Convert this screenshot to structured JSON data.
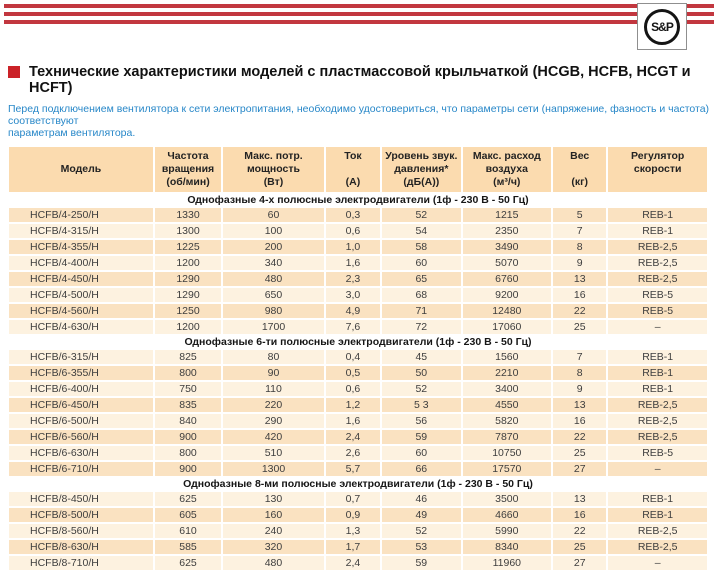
{
  "logo": {
    "text": "S&P"
  },
  "header": {
    "title": "Технические характеристики моделей с пластмассовой крыльчаткой (HCGB, HCFB, HCGT и HCFT)",
    "note_line1": "Перед подключением вентилятора к сети электропитания, необходимо удостовериться, что параметры сети (напряжение, фазность и частота) соответствуют",
    "note_line2": "параметрам вентилятора."
  },
  "colors": {
    "stripe": "#C2373F",
    "accent_red": "#CB2228",
    "note_blue": "#2787C8",
    "header_bg": "#FBDBAF",
    "row_dark": "#FAE2C1",
    "row_light": "#FDF2E0"
  },
  "table": {
    "columns": [
      {
        "lines": [
          "Модель"
        ]
      },
      {
        "lines": [
          "Частота",
          "вращения",
          "(об/мин)"
        ]
      },
      {
        "lines": [
          "Макс. потр.",
          "мощность",
          "(Вт)"
        ]
      },
      {
        "lines": [
          "Ток",
          "",
          "(А)"
        ]
      },
      {
        "lines": [
          "Уровень звук.",
          "давления*",
          "(дБ(А))"
        ]
      },
      {
        "lines": [
          "Макс. расход",
          "воздуха",
          "(м³/ч)"
        ]
      },
      {
        "lines": [
          "Вес",
          "",
          "(кг)"
        ]
      },
      {
        "lines": [
          "Регулятор",
          "скорости"
        ]
      }
    ],
    "sections": [
      {
        "title": "Однофазные 4-х полюсные электродвигатели (1ф - 230 В - 50 Гц)",
        "zebra_start": "dark",
        "rows": [
          [
            "HCFB/4-250/H",
            "1330",
            "60",
            "0,3",
            "52",
            "1215",
            "5",
            "REB-1"
          ],
          [
            "HCFB/4-315/H",
            "1300",
            "100",
            "0,6",
            "54",
            "2350",
            "7",
            "REB-1"
          ],
          [
            "HCFB/4-355/H",
            "1225",
            "200",
            "1,0",
            "58",
            "3490",
            "8",
            "REB-2,5"
          ],
          [
            "HCFB/4-400/H",
            "1200",
            "340",
            "1,6",
            "60",
            "5070",
            "9",
            "REB-2,5"
          ],
          [
            "HCFB/4-450/H",
            "1290",
            "480",
            "2,3",
            "65",
            "6760",
            "13",
            "REB-2,5"
          ],
          [
            "HCFB/4-500/H",
            "1290",
            "650",
            "3,0",
            "68",
            "9200",
            "16",
            "REB-5"
          ],
          [
            "HCFB/4-560/H",
            "1250",
            "980",
            "4,9",
            "71",
            "12480",
            "22",
            "REB-5"
          ],
          [
            "HCFB/4-630/H",
            "1200",
            "1700",
            "7,6",
            "72",
            "17060",
            "25",
            "–"
          ]
        ]
      },
      {
        "title": "Однофазные 6-ти полюсные электродвигатели (1ф - 230 В - 50 Гц)",
        "zebra_start": "light",
        "rows": [
          [
            "HCFB/6-315/H",
            "825",
            "80",
            "0,4",
            "45",
            "1560",
            "7",
            "REB-1"
          ],
          [
            "HCFB/6-355/H",
            "800",
            "90",
            "0,5",
            "50",
            "2210",
            "8",
            "REB-1"
          ],
          [
            "HCFB/6-400/H",
            "750",
            "110",
            "0,6",
            "52",
            "3400",
            "9",
            "REB-1"
          ],
          [
            "HCFB/6-450/H",
            "835",
            "220",
            "1,2",
            "5 3",
            "4550",
            "13",
            "REB-2,5"
          ],
          [
            "HCFB/6-500/H",
            "840",
            "290",
            "1,6",
            "56",
            "5820",
            "16",
            "REB-2,5"
          ],
          [
            "HCFB/6-560/H",
            "900",
            "420",
            "2,4",
            "59",
            "7870",
            "22",
            "REB-2,5"
          ],
          [
            "HCFB/6-630/H",
            "800",
            "510",
            "2,6",
            "60",
            "10750",
            "25",
            "REB-5"
          ],
          [
            "HCFB/6-710/H",
            "900",
            "1300",
            "5,7",
            "66",
            "17570",
            "27",
            "–"
          ]
        ]
      },
      {
        "title": "Однофазные 8-ми полюсные электродвигатели (1ф - 230 В - 50 Гц)",
        "zebra_start": "light",
        "rows": [
          [
            "HCFB/8-450/H",
            "625",
            "130",
            "0,7",
            "46",
            "3500",
            "13",
            "REB-1"
          ],
          [
            "HCFB/8-500/H",
            "605",
            "160",
            "0,9",
            "49",
            "4660",
            "16",
            "REB-1"
          ],
          [
            "HCFB/8-560/H",
            "610",
            "240",
            "1,3",
            "52",
            "5990",
            "22",
            "REB-2,5"
          ],
          [
            "HCFB/8-630/H",
            "585",
            "320",
            "1,7",
            "53",
            "8340",
            "25",
            "REB-2,5"
          ],
          [
            "HCFB/8-710/H",
            "625",
            "480",
            "2,4",
            "59",
            "11960",
            "27",
            "–"
          ]
        ]
      }
    ]
  }
}
